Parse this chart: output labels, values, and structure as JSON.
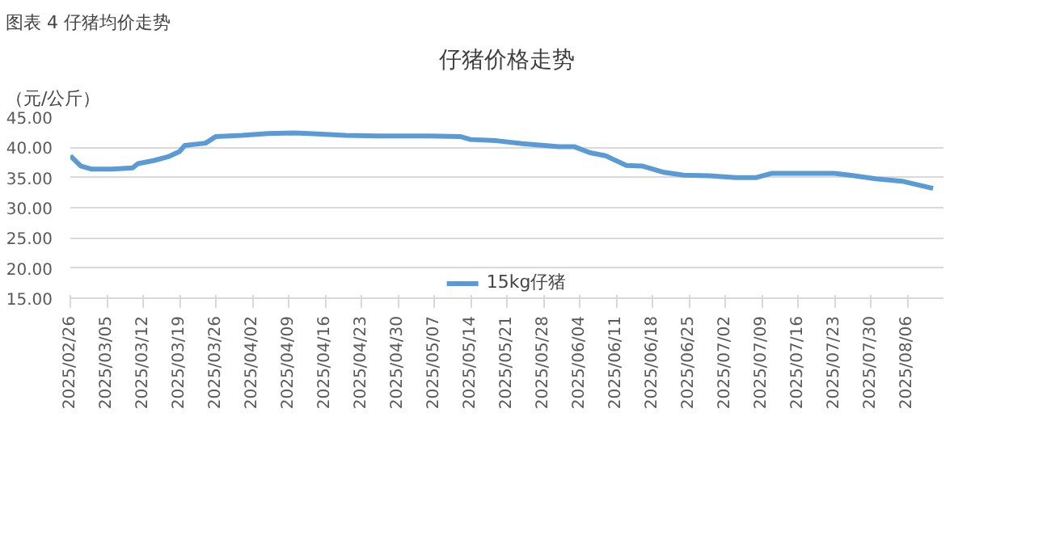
{
  "chart_data": {
    "type": "line",
    "title": "仔猪价格走势",
    "ylabel": "（元/公斤）",
    "annotations": [
      "图表 4 仔猪均价走势"
    ],
    "x": [
      "2025-02-26",
      "2025-02-28",
      "2025-03-02",
      "2025-03-06",
      "2025-03-10",
      "2025-03-11",
      "2025-03-14",
      "2025-03-17",
      "2025-03-19",
      "2025-03-20",
      "2025-03-24",
      "2025-03-26",
      "2025-03-31",
      "2025-04-05",
      "2025-04-10",
      "2025-04-13",
      "2025-04-20",
      "2025-04-26",
      "2025-05-06",
      "2025-05-12",
      "2025-05-14",
      "2025-05-19",
      "2025-05-24",
      "2025-05-31",
      "2025-06-03",
      "2025-06-06",
      "2025-06-09",
      "2025-06-13",
      "2025-06-16",
      "2025-06-20",
      "2025-06-24",
      "2025-06-29",
      "2025-07-04",
      "2025-07-08",
      "2025-07-11",
      "2025-07-16",
      "2025-07-23",
      "2025-07-26",
      "2025-07-31",
      "2025-08-05",
      "2025-08-11"
    ],
    "series": [
      {
        "name": "15kg仔猪",
        "color": "#5b9bd5",
        "values": [
          38.6,
          36.9,
          36.4,
          36.4,
          36.6,
          37.3,
          37.8,
          38.5,
          39.3,
          40.3,
          40.7,
          41.8,
          42.0,
          42.3,
          42.4,
          42.3,
          42.0,
          41.9,
          41.9,
          41.8,
          41.3,
          41.1,
          40.6,
          40.1,
          40.1,
          39.1,
          38.6,
          37.0,
          36.9,
          35.9,
          35.4,
          35.3,
          35.0,
          35.0,
          35.7,
          35.7,
          35.7,
          35.4,
          34.8,
          34.4,
          33.2
        ]
      }
    ],
    "xlim": [
      "2025-02-26",
      "2025-08-13"
    ],
    "xticks": [
      {
        "value": "2025-02-26",
        "label": "2025/02/26"
      },
      {
        "value": "2025-03-05",
        "label": "2025/03/05"
      },
      {
        "value": "2025-03-12",
        "label": "2025/03/12"
      },
      {
        "value": "2025-03-19",
        "label": "2025/03/19"
      },
      {
        "value": "2025-03-26",
        "label": "2025/03/26"
      },
      {
        "value": "2025-04-02",
        "label": "2025/04/02"
      },
      {
        "value": "2025-04-09",
        "label": "2025/04/09"
      },
      {
        "value": "2025-04-16",
        "label": "2025/04/16"
      },
      {
        "value": "2025-04-23",
        "label": "2025/04/23"
      },
      {
        "value": "2025-04-30",
        "label": "2025/04/30"
      },
      {
        "value": "2025-05-07",
        "label": "2025/05/07"
      },
      {
        "value": "2025-05-14",
        "label": "2025/05/14"
      },
      {
        "value": "2025-05-21",
        "label": "2025/05/21"
      },
      {
        "value": "2025-05-28",
        "label": "2025/05/28"
      },
      {
        "value": "2025-06-04",
        "label": "2025/06/04"
      },
      {
        "value": "2025-06-11",
        "label": "2025/06/11"
      },
      {
        "value": "2025-06-18",
        "label": "2025/06/18"
      },
      {
        "value": "2025-06-25",
        "label": "2025/06/25"
      },
      {
        "value": "2025-07-02",
        "label": "2025/07/02"
      },
      {
        "value": "2025-07-09",
        "label": "2025/07/09"
      },
      {
        "value": "2025-07-16",
        "label": "2025/07/16"
      },
      {
        "value": "2025-07-23",
        "label": "2025/07/23"
      },
      {
        "value": "2025-07-30",
        "label": "2025/07/30"
      },
      {
        "value": "2025-08-06",
        "label": "2025/08/06"
      }
    ],
    "ylim": [
      15,
      45
    ],
    "yticks": [
      {
        "value": 15,
        "label": "15.00"
      },
      {
        "value": 20,
        "label": "20.00"
      },
      {
        "value": 25,
        "label": "25.00"
      },
      {
        "value": 30,
        "label": "30.00"
      },
      {
        "value": 35,
        "label": "35.00"
      },
      {
        "value": 40,
        "label": "40.00"
      },
      {
        "value": 45,
        "label": "45.00"
      }
    ],
    "grid": "y",
    "legend": "bottom",
    "marker": "none",
    "line_style": "solid"
  }
}
